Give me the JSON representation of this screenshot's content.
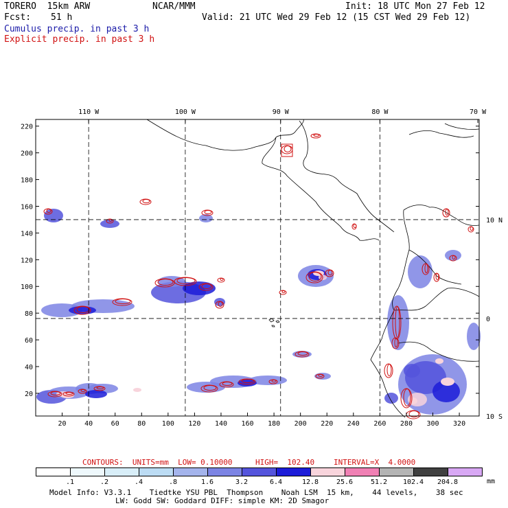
{
  "header": {
    "model": "TORERO  15km ARW",
    "org": "NCAR/MMM",
    "init": "Init: 18 UTC Mon 27 Feb 12",
    "fcst_label": "Fcst:",
    "fcst_value": "51 h",
    "valid": "Valid: 21 UTC Wed 29 Feb 12 (15 CST Wed 29 Feb 12)",
    "line_cumulus": "Cumulus precip. in past 3 h",
    "line_explicit": "Explicit precip. in past 3 h"
  },
  "contour_info": {
    "units": "CONTOURS:  UNITS=mm  LOW= 0.10000",
    "high": "HIGH=  102.40",
    "interval": "INTERVAL=X  4.0000"
  },
  "colorbar": {
    "labels": [
      ".1",
      ".2",
      ".4",
      ".8",
      "1.6",
      "3.2",
      "6.4",
      "12.8",
      "25.6",
      "51.2",
      "102.4",
      "204.8"
    ],
    "unit": "mm",
    "colors": [
      "#ffffff",
      "#eef8fc",
      "#d8eef8",
      "#bcdcf4",
      "#a4b4ec",
      "#7c84e4",
      "#5454dc",
      "#1c1cd8",
      "#f8d4dc",
      "#f080b4",
      "#b4b4b4",
      "#404040",
      "#d8a8f4"
    ]
  },
  "footer": {
    "line1": "Model Info: V3.3.1    Tiedtke YSU PBL  Thompson    Noah LSM  15 km,    44 levels,    38 sec",
    "line2": "LW: Godd SW: Goddard DIFF: simple KM: 2D Smagor"
  },
  "chart_data": {
    "type": "map",
    "title": "Cumulus and explicit precipitation in past 3 h",
    "x_ticks": [
      20,
      40,
      60,
      80,
      100,
      120,
      140,
      160,
      180,
      200,
      220,
      240,
      260,
      280,
      300,
      320
    ],
    "y_ticks": [
      20,
      40,
      60,
      80,
      100,
      120,
      140,
      160,
      180,
      200,
      220
    ],
    "xlim": [
      0,
      335
    ],
    "ylim": [
      3,
      225
    ],
    "lon_labels": [
      {
        "label": "110 W",
        "x": 40
      },
      {
        "label": "100 W",
        "x": 113
      },
      {
        "label": "90 W",
        "x": 185
      },
      {
        "label": "80 W",
        "x": 260
      },
      {
        "label": "70 W",
        "x": 334
      }
    ],
    "lat_labels": [
      {
        "label": "10 N",
        "y": 150
      },
      {
        "label": "0",
        "y": 76
      },
      {
        "label": "10 S",
        "y": 3
      }
    ],
    "gridlines": {
      "lon_x": [
        40,
        113,
        185,
        260
      ],
      "lat_y": [
        150,
        76
      ]
    }
  }
}
